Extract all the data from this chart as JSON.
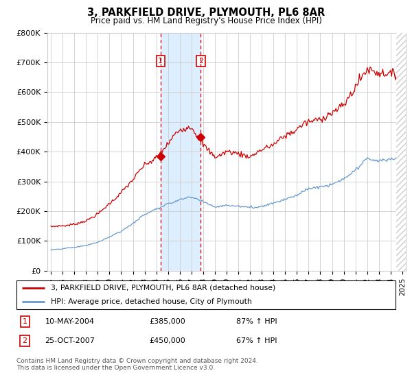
{
  "title": "3, PARKFIELD DRIVE, PLYMOUTH, PL6 8AR",
  "subtitle": "Price paid vs. HM Land Registry's House Price Index (HPI)",
  "legend_line1": "3, PARKFIELD DRIVE, PLYMOUTH, PL6 8AR (detached house)",
  "legend_line2": "HPI: Average price, detached house, City of Plymouth",
  "sale1_date": "10-MAY-2004",
  "sale1_price": 385000,
  "sale1_hpi": "87% ↑ HPI",
  "sale2_date": "25-OCT-2007",
  "sale2_price": 450000,
  "sale2_hpi": "67% ↑ HPI",
  "footer": "Contains HM Land Registry data © Crown copyright and database right 2024.\nThis data is licensed under the Open Government Licence v3.0.",
  "red_color": "#cc0000",
  "blue_color": "#6699cc",
  "shade_color": "#ddeeff",
  "marker_box_color": "#cc0000",
  "grid_color": "#cccccc",
  "sale1_x": 2004.36,
  "sale2_x": 2007.8,
  "ylim": [
    0,
    800000
  ],
  "yticks": [
    0,
    100000,
    200000,
    300000,
    400000,
    500000,
    600000,
    700000,
    800000
  ],
  "ytick_labels": [
    "£0",
    "£100K",
    "£200K",
    "£300K",
    "£400K",
    "£500K",
    "£600K",
    "£700K",
    "£800K"
  ],
  "xlim_left": 1994.7,
  "xlim_right": 2025.3
}
